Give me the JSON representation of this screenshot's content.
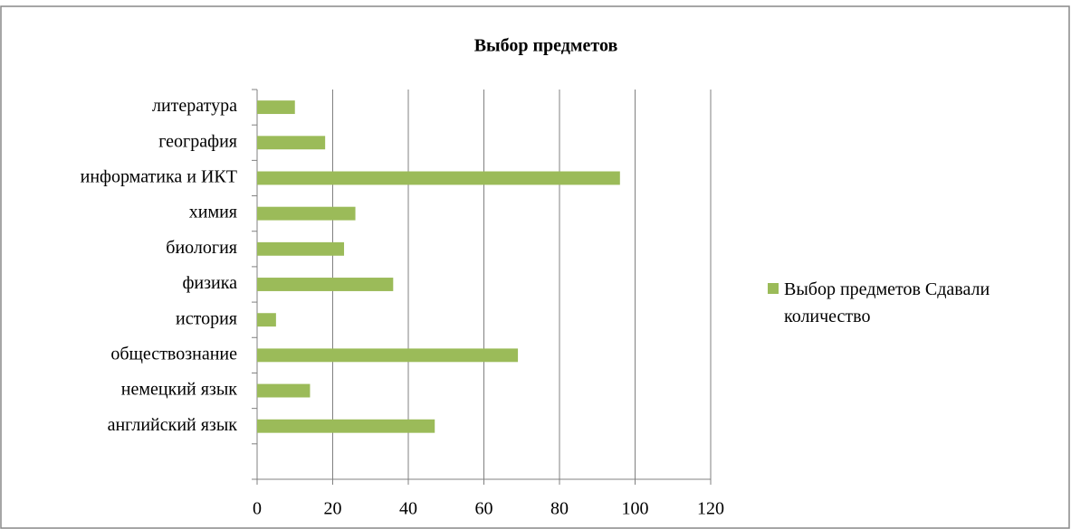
{
  "chart_data": {
    "type": "bar",
    "orientation": "horizontal",
    "title": "Выбор предметов",
    "categories": [
      null,
      "английский язык",
      "немецкий язык",
      "обществознание",
      "история",
      "физика",
      "биология",
      "химия",
      "информатика и ИКТ",
      "география",
      "литература"
    ],
    "series": [
      {
        "name": "Выбор предметов Сдавали количество",
        "color": "#9bbb59",
        "values": [
          null,
          47,
          14,
          69,
          5,
          36,
          23,
          26,
          96,
          18,
          10
        ]
      }
    ],
    "xlim": [
      0,
      120
    ],
    "xticks": [
      0,
      20,
      40,
      60,
      80,
      100,
      120
    ],
    "grid": true,
    "legend": "right"
  }
}
